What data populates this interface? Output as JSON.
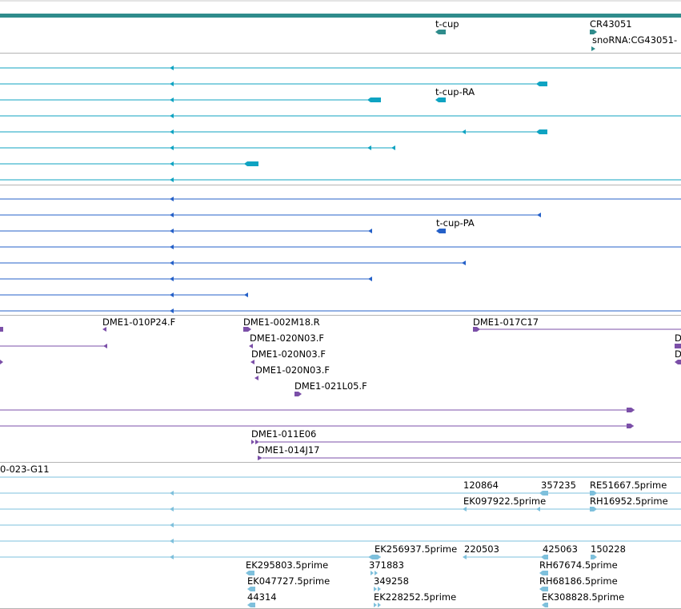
{
  "colors": {
    "gene_track": "#2f8c8c",
    "transcript": "#0fa3c2",
    "protein": "#2460c8",
    "clone": "#7b4fa8",
    "est": "#7ec0dc",
    "divider": "#b4b4b4"
  },
  "tracks": {
    "genes": {
      "labels": [
        "t-cup",
        "CR43051",
        "snoRNA:CG43051-"
      ]
    },
    "transcripts": {
      "labels": [
        "t-cup-RA"
      ]
    },
    "proteins": {
      "labels": [
        "t-cup-PA"
      ]
    },
    "clones": {
      "labels": [
        "DME1-010P24.F",
        "DME1-002M18.R",
        "DME1-017C17",
        "DME1-020N03.F",
        "DME1-020N03.F",
        "DME1-020N03.F",
        "DME1-021L05.F",
        "D",
        "D",
        "DME1-011E06",
        "DME1-014J17"
      ]
    },
    "ests": {
      "labels": [
        "0-023-G11",
        "120864",
        "357235",
        "RE51667.5prime",
        "EK097922.5prime",
        "RH16952.5prime",
        "EK256937.5prime",
        "220503",
        "425063",
        "150228",
        "EK295803.5prime",
        "371883",
        "RH67674.5prime",
        "EK047727.5prime",
        "349258",
        "RH68186.5prime",
        "44314",
        "EK228252.5prime",
        "EK308828.5prime"
      ]
    }
  }
}
